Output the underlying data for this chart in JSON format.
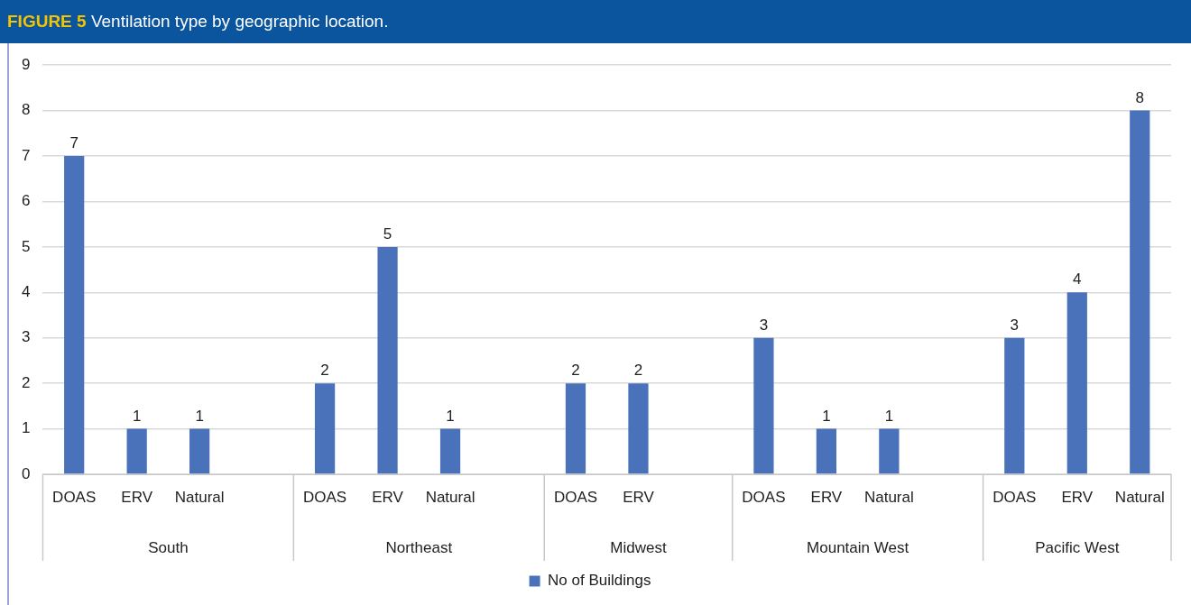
{
  "chart_data": {
    "type": "bar",
    "title": "FIGURE 5 Ventilation type by geographic location.",
    "categories": [
      "DOAS",
      "ERV",
      "Natural",
      null,
      "DOAS",
      "ERV",
      "Natural",
      null,
      "DOAS",
      "ERV",
      null,
      "DOAS",
      "ERV",
      "Natural",
      null,
      "DOAS",
      "ERV",
      "Natural"
    ],
    "series": [
      {
        "name": "No of Buildings",
        "color": "#4a72ba",
        "values": [
          7,
          1,
          1,
          null,
          2,
          5,
          1,
          null,
          2,
          2,
          null,
          3,
          1,
          1,
          null,
          3,
          4,
          8
        ]
      }
    ],
    "ylim": [
      0,
      9
    ],
    "yticks": [
      0,
      1,
      2,
      3,
      4,
      5,
      6,
      7,
      8,
      9
    ],
    "grid": "y",
    "legend": "bottom",
    "data_labels": true,
    "annotations": [
      "South",
      "Northeast",
      "Midwest",
      "Mountain West",
      "Pacific West"
    ]
  }
}
